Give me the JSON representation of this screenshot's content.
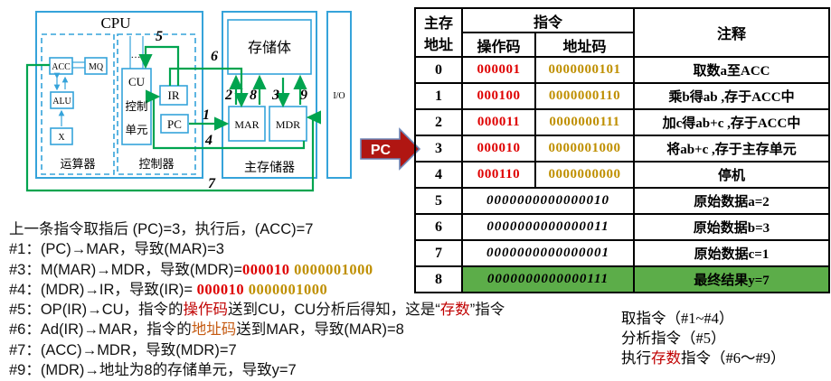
{
  "colors": {
    "box_blue": "#35A3DA",
    "arrow_green": "#00A44F",
    "opcode_red": "#DF0000",
    "addrcode_gold": "#BF8F00",
    "highlight_green": "#5CAD49",
    "pc_arrow_red": "#B01612"
  },
  "diagram": {
    "cpu_label": "CPU",
    "memory_bank": "存储体",
    "dots": "…",
    "registers": {
      "acc": "ACC",
      "mq": "MQ",
      "alu": "ALU",
      "x": "X",
      "ir": "IR",
      "pc": "PC",
      "mar": "MAR",
      "mdr": "MDR",
      "io": "I/O"
    },
    "cu": {
      "line1": "CU",
      "line2": "控制",
      "line3": "单元"
    },
    "sections": {
      "datapath": "运算器",
      "control": "控制器",
      "main_memory": "主存储器"
    },
    "arrows": {
      "n1": "1",
      "n2": "2",
      "n3": "3",
      "n4": "4",
      "n5": "5",
      "n6": "6",
      "n7": "7",
      "n8": "8",
      "n9": "9"
    }
  },
  "pc_pointer": {
    "label": "PC"
  },
  "table": {
    "header": {
      "addr_line1": "主存",
      "addr_line2": "地址",
      "instruction": "指令",
      "opcode": "操作码",
      "addrcode": "地址码",
      "comment": "注释"
    },
    "rows": [
      {
        "addr": "0",
        "opcode": "000001",
        "addrcode": "0000000101",
        "comment": "取数a至ACC"
      },
      {
        "addr": "1",
        "opcode": "000100",
        "addrcode": "0000000110",
        "comment": "乘b得ab ,存于ACC中"
      },
      {
        "addr": "2",
        "opcode": "000011",
        "addrcode": "0000000111",
        "comment": "加c得ab+c ,存于ACC中"
      },
      {
        "addr": "3",
        "opcode": "000010",
        "addrcode": "0000001000",
        "comment": "将ab+c ,存于主存单元"
      },
      {
        "addr": "4",
        "opcode": "000110",
        "addrcode": "0000000000",
        "comment": "停机"
      },
      {
        "addr": "5",
        "data": "0000000000000010",
        "comment": "原始数据a=2"
      },
      {
        "addr": "6",
        "data": "0000000000000011",
        "comment": "原始数据b=3"
      },
      {
        "addr": "7",
        "data": "0000000000000001",
        "comment": "原始数据c=1"
      },
      {
        "addr": "8",
        "data": "0000000000000111",
        "comment": "最终结果y=7",
        "highlight": true
      }
    ]
  },
  "notes": {
    "lines": [
      {
        "segs": [
          {
            "t": "上一条指令取指后 (PC)=3，执行后，(ACC)=7"
          }
        ]
      },
      {
        "segs": [
          {
            "t": "#1：(PC)"
          },
          {
            "t": "→",
            "c": "arr"
          },
          {
            "t": "MAR，导致(MAR)=3"
          }
        ]
      },
      {
        "segs": [
          {
            "t": "#3：M(MAR)"
          },
          {
            "t": "→",
            "c": "arr"
          },
          {
            "t": "MDR，导致(MDR)="
          },
          {
            "t": "000010",
            "c": "opc"
          },
          {
            "t": " 0000001000",
            "c": "adc"
          }
        ]
      },
      {
        "segs": [
          {
            "t": "#4：(MDR)"
          },
          {
            "t": "→",
            "c": "arr"
          },
          {
            "t": "IR，导致(IR)= "
          },
          {
            "t": "000010",
            "c": "opc"
          },
          {
            "t": " 0000001000",
            "c": "adc"
          }
        ]
      },
      {
        "segs": [
          {
            "t": "#5：OP(IR)"
          },
          {
            "t": "→",
            "c": "arr"
          },
          {
            "t": "CU，指令的"
          },
          {
            "t": "操作码",
            "c": "red"
          },
          {
            "t": "送到CU，CU分析后得知，这是“"
          },
          {
            "t": "存数",
            "c": "red"
          },
          {
            "t": "”指令"
          }
        ]
      },
      {
        "segs": [
          {
            "t": "#6：Ad(IR)"
          },
          {
            "t": "→",
            "c": "arr"
          },
          {
            "t": "MAR，指令的"
          },
          {
            "t": "地址码",
            "c": "org"
          },
          {
            "t": "送到MAR，导致(MAR)=8"
          }
        ]
      },
      {
        "segs": [
          {
            "t": "#7：(ACC)"
          },
          {
            "t": "→",
            "c": "arr"
          },
          {
            "t": "MDR，导致(MDR)=7"
          }
        ]
      },
      {
        "segs": [
          {
            "t": "#9：(MDR)"
          },
          {
            "t": "→",
            "c": "arr"
          },
          {
            "t": "地址为8的存储单元，导致y=7"
          }
        ]
      }
    ]
  },
  "summary": {
    "lines": [
      {
        "segs": [
          {
            "t": "取指令（#1~#4）"
          }
        ]
      },
      {
        "segs": [
          {
            "t": "分析指令（#5）"
          }
        ]
      },
      {
        "segs": [
          {
            "t": "执行"
          },
          {
            "t": "存数",
            "c": "red"
          },
          {
            "t": "指令（#6～#9）"
          }
        ]
      }
    ]
  }
}
